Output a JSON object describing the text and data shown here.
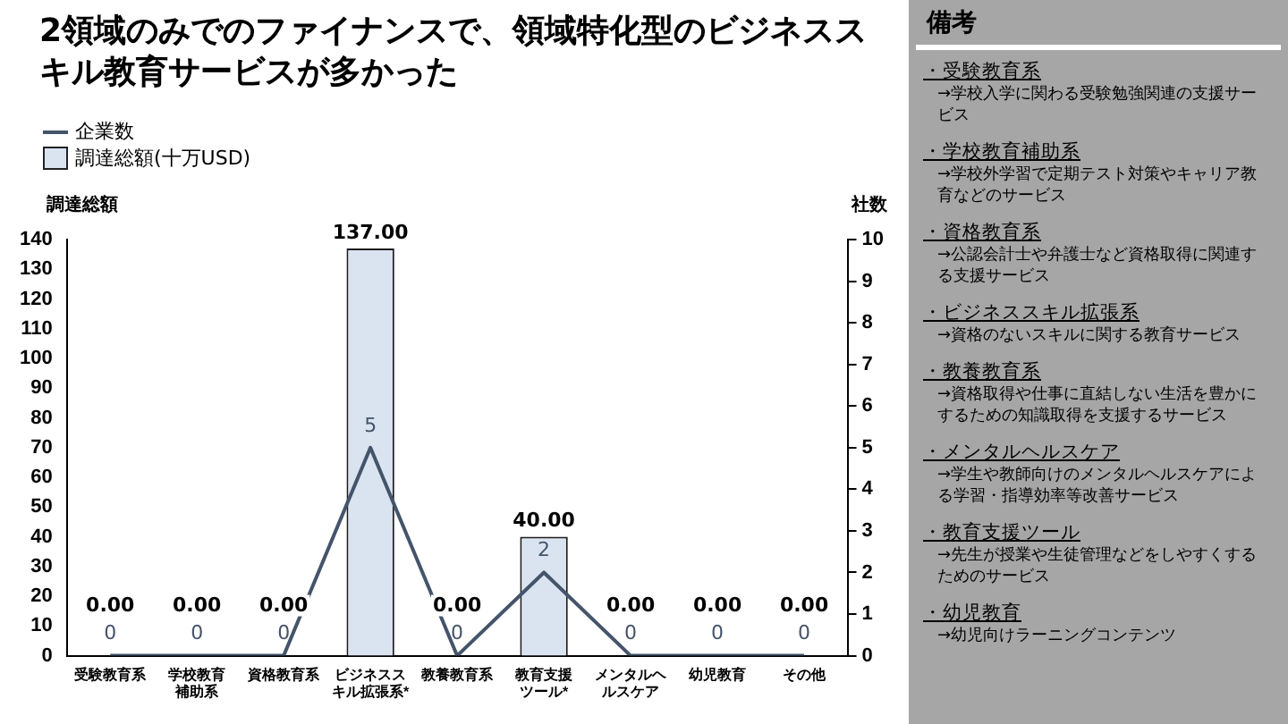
{
  "chart_data": [
    {
      "type": "bar",
      "title": "2領域のみでのファイナンスで、領域特化型のビジネススキル教育サービスが多かった",
      "categories": [
        "受験教育系",
        "学校教育補助系",
        "資格教育系",
        "ビジネススキル拡張系*",
        "教養教育系",
        "教育支援ツール*",
        "メンタルヘルスケア",
        "幼児教育",
        "その他"
      ],
      "series": [
        {
          "name": "企業数",
          "type": "line",
          "axis": "y2",
          "color": "#44546a",
          "values": [
            0,
            0,
            0,
            5,
            0,
            2,
            0,
            0,
            0
          ],
          "value_labels": [
            "0",
            "0",
            "0",
            "5",
            "0",
            "2",
            "0",
            "0",
            "0"
          ]
        },
        {
          "name": "調達総額(十万USD)",
          "type": "bar",
          "color": "#dae3f0",
          "values": [
            0,
            0,
            0,
            137,
            0,
            40,
            0,
            0,
            0
          ],
          "value_labels": [
            "0.00",
            "0.00",
            "0.00",
            "137.00",
            "0.00",
            "40.00",
            "0.00",
            "0.00",
            "0.00"
          ]
        }
      ],
      "ylabel": "調達総額",
      "y2label": "社数",
      "ylim": [
        0,
        140
      ],
      "yticks": [
        0,
        10,
        20,
        30,
        40,
        50,
        60,
        70,
        80,
        90,
        100,
        110,
        120,
        130,
        140
      ],
      "y2lim": [
        0,
        10
      ],
      "y2ticks": [
        0,
        1,
        2,
        3,
        4,
        5,
        6,
        7,
        8,
        9,
        10
      ],
      "grid": false,
      "legend": "top left",
      "marker": "none"
    },
    {
      "type": "other",
      "title": "備考",
      "annotations": [
        "・受験教育系",
        "→学校入学に関わる受験勉強関連の支援サービス",
        "・学校教育補助系",
        "→学校外学習で定期テスト対策やキャリア教育などのサービス",
        "・資格教育系",
        "→公認会計士や弁護士など資格取得に関連する支援サービス",
        "・ビジネススキル拡張系",
        "→資格のないスキルに関する教育サービス",
        "・教養教育系",
        "→資格取得や仕事に直結しない生活を豊かにするための知識取得を支援するサービス",
        "・メンタルヘルスケア",
        "→学生や教師向けのメンタルヘルスケアによる学習・指導効率等改善サービス",
        "・教育支援ツール",
        "→先生が授業や生徒管理などをしやすくするためのサービス",
        "・幼児教育",
        "→幼児向けラーニングコンテンツ"
      ]
    }
  ]
}
